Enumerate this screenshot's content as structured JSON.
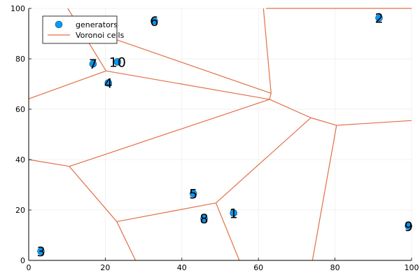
{
  "chart_data": {
    "type": "scatter",
    "xlim": [
      0,
      100
    ],
    "ylim": [
      0,
      100
    ],
    "xticks": [
      "0",
      "20",
      "40",
      "60",
      "80",
      "100"
    ],
    "yticks": [
      "0",
      "20",
      "40",
      "60",
      "80",
      "100"
    ],
    "grid": true,
    "legend_position": "top-left",
    "colors": {
      "generators": "#009af9",
      "voronoi": "#e26f46"
    },
    "series": [
      {
        "name": "generators",
        "kind": "points",
        "points": [
          {
            "label": "1",
            "x": 53.5,
            "y": 18.8
          },
          {
            "label": "2",
            "x": 91.5,
            "y": 96.2
          },
          {
            "label": "3",
            "x": 3.2,
            "y": 3.6
          },
          {
            "label": "4",
            "x": 20.8,
            "y": 70.4
          },
          {
            "label": "5",
            "x": 43.0,
            "y": 26.5
          },
          {
            "label": "6",
            "x": 32.8,
            "y": 95.0
          },
          {
            "label": "7",
            "x": 16.8,
            "y": 78.0
          },
          {
            "label": "8",
            "x": 45.8,
            "y": 16.6
          },
          {
            "label": "9",
            "x": 99.2,
            "y": 13.6
          },
          {
            "label": "10",
            "x": 23.2,
            "y": 78.8
          }
        ]
      },
      {
        "name": "Voronoi cells",
        "kind": "segments",
        "segments": [
          [
            [
              10.2,
              100
            ],
            [
              20.2,
              75.2
            ]
          ],
          [
            [
              0,
              64.1
            ],
            [
              20.2,
              75.2
            ]
          ],
          [
            [
              20.2,
              75.2
            ],
            [
              62.9,
              63.9
            ]
          ],
          [
            [
              62.9,
              63.9
            ],
            [
              63.3,
              66.3
            ]
          ],
          [
            [
              63.3,
              66.3
            ],
            [
              61.3,
              100
            ]
          ],
          [
            [
              63.3,
              66.3
            ],
            [
              20.2,
              89.0
            ]
          ],
          [
            [
              62.9,
              63.9
            ],
            [
              73.7,
              56.6
            ]
          ],
          [
            [
              62.9,
              63.9
            ],
            [
              10.6,
              37.3
            ]
          ],
          [
            [
              10.6,
              37.3
            ],
            [
              0,
              40.0
            ]
          ],
          [
            [
              10.6,
              37.3
            ],
            [
              23.0,
              15.4
            ]
          ],
          [
            [
              23.0,
              15.4
            ],
            [
              27.9,
              0
            ]
          ],
          [
            [
              23.0,
              15.4
            ],
            [
              48.9,
              22.8
            ]
          ],
          [
            [
              48.9,
              22.8
            ],
            [
              55.0,
              0
            ]
          ],
          [
            [
              48.9,
              22.8
            ],
            [
              73.7,
              56.6
            ]
          ],
          [
            [
              73.7,
              56.6
            ],
            [
              80.4,
              53.6
            ]
          ],
          [
            [
              80.4,
              53.6
            ],
            [
              74.1,
              0
            ]
          ],
          [
            [
              80.4,
              53.6
            ],
            [
              100,
              55.5
            ]
          ],
          [
            [
              62.0,
              100
            ],
            [
              100,
              100
            ]
          ]
        ]
      }
    ]
  }
}
